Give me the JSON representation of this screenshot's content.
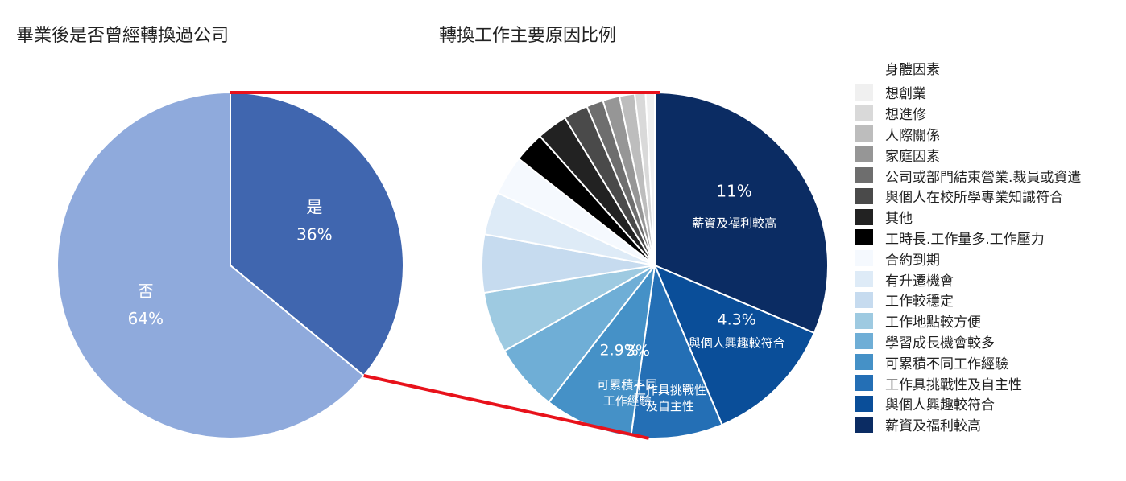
{
  "colors": {
    "pie1_yes": "#4066AF",
    "pie1_no": "#8FAADC",
    "connector": "#E8121B",
    "slice_border": "#FFFFFF",
    "label_white": "#FFFFFF"
  },
  "chart_data": [
    {
      "type": "pie",
      "title": "畢業後是否曾經轉換過公司",
      "slices": [
        {
          "label": "是",
          "value": 36,
          "value_label": "36%",
          "color": "#4066AF"
        },
        {
          "label": "否",
          "value": 64,
          "value_label": "64%",
          "color": "#8FAADC"
        }
      ]
    },
    {
      "type": "pie",
      "title": "轉換工作主要原因比例",
      "legend_header": "身體因素",
      "legend_position": "right",
      "slices": [
        {
          "label": "薪資及福利較高",
          "value": 11,
          "value_label": "11%",
          "color": "#0B2C63"
        },
        {
          "label": "與個人興趣較符合",
          "value": 4.3,
          "value_label": "4.3%",
          "color": "#0A4E99"
        },
        {
          "label": "工作具挑戰性及自主性",
          "value": 3,
          "value_label": "3%",
          "color": "#246FB5",
          "slice_label": "工作具挑戰性\n及自主性"
        },
        {
          "label": "可累積不同工作經驗",
          "value": 2.9,
          "value_label": "2.9%",
          "color": "#4591C7",
          "slice_label": "可累積不同\n工作經驗"
        },
        {
          "label": "學習成長機會較多",
          "value": 2.2,
          "color": "#6FAED6"
        },
        {
          "label": "工作地點較方便",
          "value": 2.0,
          "color": "#9ECAE1"
        },
        {
          "label": "工作較穩定",
          "value": 1.9,
          "color": "#C6DBEF"
        },
        {
          "label": "有升遷機會",
          "value": 1.4,
          "color": "#DEEBF7"
        },
        {
          "label": "合約到期",
          "value": 1.3,
          "color": "#F5F9FE"
        },
        {
          "label": "工時長.工作量多.工作壓力",
          "value": 1.0,
          "color": "#000000"
        },
        {
          "label": "其他",
          "value": 1.0,
          "color": "#222222"
        },
        {
          "label": "與個人在校所學專業知識符合",
          "value": 0.8,
          "color": "#4A4A4A"
        },
        {
          "label": "公司或部門結束營業.裁員或資遣",
          "value": 0.55,
          "color": "#6E6E6E"
        },
        {
          "label": "家庭因素",
          "value": 0.55,
          "color": "#969696"
        },
        {
          "label": "人際關係",
          "value": 0.5,
          "color": "#BDBDBD"
        },
        {
          "label": "想進修",
          "value": 0.35,
          "color": "#D9D9D9"
        },
        {
          "label": "想創業",
          "value": 0.3,
          "color": "#F0F0F0"
        }
      ]
    }
  ]
}
